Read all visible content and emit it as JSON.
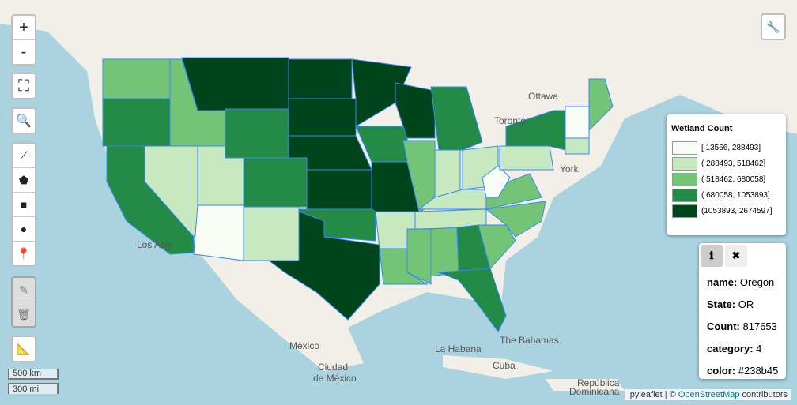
{
  "map": {
    "labels": {
      "ottawa": "Ottawa",
      "toronto": "Toronto",
      "new_york": "York",
      "los_angeles": "Los Ang",
      "mexico": "México",
      "ciudad": "Ciudad",
      "de_mexico": "de México",
      "habana": "La Habana",
      "bahamas": "The Bahamas",
      "cuba": "Cuba",
      "republica": "República",
      "dominicana": "Dominicana"
    },
    "controls": {
      "zoom_in": "+",
      "zoom_out": "-"
    },
    "scale": {
      "metric": "500 km",
      "imperial": "300 mi"
    },
    "attribution": {
      "prefix": "ipyleaflet | © ",
      "link": "OpenStreetMap",
      "suffix": " contributors"
    }
  },
  "legend": {
    "title": "Wetland Count",
    "items": [
      {
        "label": "[ 13566, 288493]",
        "color": "#f7fcf5"
      },
      {
        "label": "( 288493, 518462]",
        "color": "#c7e9c0"
      },
      {
        "label": "( 518462, 680058]",
        "color": "#74c476"
      },
      {
        "label": "( 680058, 1053893]",
        "color": "#238b45"
      },
      {
        "label": "(1053893, 2674597]",
        "color": "#00441b"
      }
    ]
  },
  "popup": {
    "fields": [
      {
        "key": "name:",
        "value": "Oregon"
      },
      {
        "key": "State:",
        "value": "OR"
      },
      {
        "key": "Count:",
        "value": "817653"
      },
      {
        "key": "category:",
        "value": "4"
      },
      {
        "key": "color:",
        "value": "#238b45"
      }
    ]
  }
}
